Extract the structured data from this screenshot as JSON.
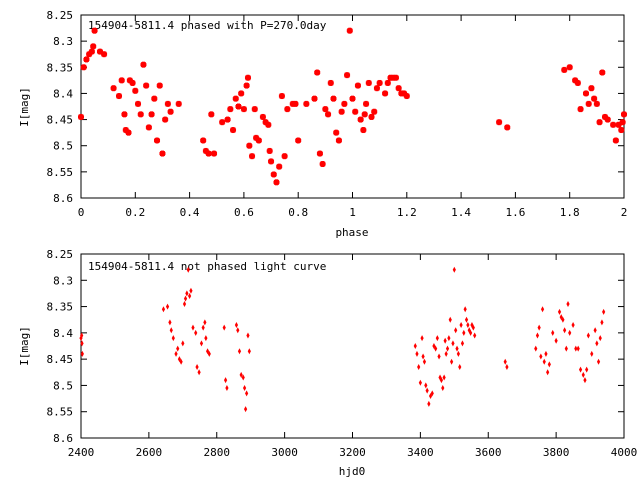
{
  "colors": {
    "points": "#ff0000",
    "axes": "#000000",
    "background": "#ffffff"
  },
  "chart_data": [
    {
      "type": "scatter",
      "title": "154904-5811.4 phased with P=270.0day",
      "xlabel": "phase",
      "ylabel": "I[mag]",
      "xlim": [
        0,
        2
      ],
      "ylim": [
        8.25,
        8.6
      ],
      "y_inverted": true,
      "grid": false,
      "marker": "thick-cross",
      "x_ticks": [
        "0",
        "0.2",
        "0.4",
        "0.6",
        "0.8",
        "1",
        "1.2",
        "1.4",
        "1.6",
        "1.8",
        "2"
      ],
      "y_ticks": [
        "8.25",
        "8.3",
        "8.35",
        "8.4",
        "8.45",
        "8.5",
        "8.55",
        "8.6"
      ],
      "points": [
        [
          0.0,
          8.445
        ],
        [
          0.01,
          8.35
        ],
        [
          0.02,
          8.335
        ],
        [
          0.03,
          8.325
        ],
        [
          0.04,
          8.32
        ],
        [
          0.045,
          8.31
        ],
        [
          0.05,
          8.28
        ],
        [
          0.07,
          8.32
        ],
        [
          0.085,
          8.325
        ],
        [
          0.12,
          8.39
        ],
        [
          0.14,
          8.405
        ],
        [
          0.15,
          8.375
        ],
        [
          0.16,
          8.44
        ],
        [
          0.165,
          8.47
        ],
        [
          0.175,
          8.475
        ],
        [
          0.18,
          8.375
        ],
        [
          0.19,
          8.38
        ],
        [
          0.2,
          8.395
        ],
        [
          0.21,
          8.42
        ],
        [
          0.22,
          8.44
        ],
        [
          0.23,
          8.345
        ],
        [
          0.24,
          8.385
        ],
        [
          0.25,
          8.465
        ],
        [
          0.26,
          8.44
        ],
        [
          0.27,
          8.41
        ],
        [
          0.28,
          8.49
        ],
        [
          0.29,
          8.385
        ],
        [
          0.3,
          8.515
        ],
        [
          0.31,
          8.45
        ],
        [
          0.32,
          8.42
        ],
        [
          0.33,
          8.435
        ],
        [
          0.36,
          8.42
        ],
        [
          0.45,
          8.49
        ],
        [
          0.46,
          8.51
        ],
        [
          0.47,
          8.515
        ],
        [
          0.48,
          8.44
        ],
        [
          0.49,
          8.515
        ],
        [
          0.52,
          8.455
        ],
        [
          0.54,
          8.45
        ],
        [
          0.55,
          8.43
        ],
        [
          0.56,
          8.47
        ],
        [
          0.57,
          8.41
        ],
        [
          0.58,
          8.425
        ],
        [
          0.59,
          8.4
        ],
        [
          0.6,
          8.43
        ],
        [
          0.61,
          8.385
        ],
        [
          0.615,
          8.37
        ],
        [
          0.62,
          8.5
        ],
        [
          0.63,
          8.52
        ],
        [
          0.64,
          8.43
        ],
        [
          0.645,
          8.485
        ],
        [
          0.655,
          8.49
        ],
        [
          0.67,
          8.445
        ],
        [
          0.68,
          8.455
        ],
        [
          0.69,
          8.46
        ],
        [
          0.695,
          8.51
        ],
        [
          0.7,
          8.53
        ],
        [
          0.71,
          8.555
        ],
        [
          0.72,
          8.57
        ],
        [
          0.73,
          8.54
        ],
        [
          0.74,
          8.405
        ],
        [
          0.75,
          8.52
        ],
        [
          0.76,
          8.43
        ],
        [
          0.78,
          8.42
        ],
        [
          0.79,
          8.42
        ],
        [
          0.8,
          8.49
        ],
        [
          0.83,
          8.42
        ],
        [
          0.86,
          8.41
        ],
        [
          0.87,
          8.36
        ],
        [
          0.88,
          8.515
        ],
        [
          0.89,
          8.535
        ],
        [
          0.9,
          8.43
        ],
        [
          0.91,
          8.44
        ],
        [
          0.92,
          8.38
        ],
        [
          0.93,
          8.41
        ],
        [
          0.94,
          8.475
        ],
        [
          0.95,
          8.49
        ],
        [
          0.96,
          8.435
        ],
        [
          0.97,
          8.42
        ],
        [
          0.98,
          8.365
        ],
        [
          0.99,
          8.28
        ],
        [
          1.0,
          8.41
        ],
        [
          1.01,
          8.435
        ],
        [
          1.02,
          8.385
        ],
        [
          1.03,
          8.45
        ],
        [
          1.04,
          8.47
        ],
        [
          1.045,
          8.44
        ],
        [
          1.05,
          8.42
        ],
        [
          1.06,
          8.38
        ],
        [
          1.07,
          8.445
        ],
        [
          1.08,
          8.435
        ],
        [
          1.09,
          8.39
        ],
        [
          1.1,
          8.38
        ],
        [
          1.12,
          8.4
        ],
        [
          1.13,
          8.38
        ],
        [
          1.14,
          8.37
        ],
        [
          1.15,
          8.37
        ],
        [
          1.16,
          8.37
        ],
        [
          1.17,
          8.39
        ],
        [
          1.18,
          8.4
        ],
        [
          1.19,
          8.4
        ],
        [
          1.2,
          8.405
        ],
        [
          1.54,
          8.455
        ],
        [
          1.57,
          8.465
        ],
        [
          1.78,
          8.355
        ],
        [
          1.8,
          8.35
        ],
        [
          1.82,
          8.375
        ],
        [
          1.83,
          8.38
        ],
        [
          1.84,
          8.43
        ],
        [
          1.86,
          8.4
        ],
        [
          1.87,
          8.42
        ],
        [
          1.88,
          8.39
        ],
        [
          1.89,
          8.41
        ],
        [
          1.9,
          8.42
        ],
        [
          1.91,
          8.455
        ],
        [
          1.92,
          8.36
        ],
        [
          1.93,
          8.445
        ],
        [
          1.94,
          8.45
        ],
        [
          1.96,
          8.46
        ],
        [
          1.97,
          8.49
        ],
        [
          1.98,
          8.46
        ],
        [
          1.99,
          8.47
        ],
        [
          1.995,
          8.455
        ],
        [
          2.0,
          8.44
        ]
      ]
    },
    {
      "type": "scatter",
      "title": "154904-5811.4 not phased light curve",
      "xlabel": "hjd0",
      "ylabel": "I[mag]",
      "xlim": [
        2400,
        4000
      ],
      "ylim": [
        8.25,
        8.6
      ],
      "y_inverted": true,
      "grid": false,
      "marker": "small-diamond",
      "x_ticks": [
        "2400",
        "2600",
        "2800",
        "3000",
        "3200",
        "3400",
        "3600",
        "3800",
        "4000"
      ],
      "y_ticks": [
        "8.25",
        "8.3",
        "8.35",
        "8.4",
        "8.45",
        "8.5",
        "8.55",
        "8.6"
      ],
      "points": [
        [
          2400,
          8.41
        ],
        [
          2402,
          8.405
        ],
        [
          2403,
          8.42
        ],
        [
          2404,
          8.44
        ],
        [
          2643,
          8.355
        ],
        [
          2655,
          8.35
        ],
        [
          2662,
          8.38
        ],
        [
          2666,
          8.395
        ],
        [
          2672,
          8.41
        ],
        [
          2680,
          8.44
        ],
        [
          2685,
          8.43
        ],
        [
          2690,
          8.45
        ],
        [
          2695,
          8.455
        ],
        [
          2700,
          8.42
        ],
        [
          2705,
          8.345
        ],
        [
          2708,
          8.335
        ],
        [
          2712,
          8.325
        ],
        [
          2716,
          8.28
        ],
        [
          2720,
          8.33
        ],
        [
          2724,
          8.32
        ],
        [
          2730,
          8.39
        ],
        [
          2738,
          8.4
        ],
        [
          2742,
          8.465
        ],
        [
          2748,
          8.475
        ],
        [
          2755,
          8.42
        ],
        [
          2760,
          8.39
        ],
        [
          2765,
          8.38
        ],
        [
          2768,
          8.41
        ],
        [
          2773,
          8.435
        ],
        [
          2778,
          8.44
        ],
        [
          2822,
          8.39
        ],
        [
          2826,
          8.49
        ],
        [
          2830,
          8.505
        ],
        [
          2858,
          8.385
        ],
        [
          2862,
          8.395
        ],
        [
          2867,
          8.435
        ],
        [
          2872,
          8.48
        ],
        [
          2878,
          8.485
        ],
        [
          2882,
          8.505
        ],
        [
          2885,
          8.545
        ],
        [
          2888,
          8.515
        ],
        [
          2892,
          8.405
        ],
        [
          2896,
          8.435
        ],
        [
          3385,
          8.425
        ],
        [
          3390,
          8.44
        ],
        [
          3395,
          8.465
        ],
        [
          3400,
          8.495
        ],
        [
          3405,
          8.41
        ],
        [
          3408,
          8.445
        ],
        [
          3412,
          8.455
        ],
        [
          3416,
          8.5
        ],
        [
          3420,
          8.51
        ],
        [
          3425,
          8.535
        ],
        [
          3430,
          8.52
        ],
        [
          3435,
          8.515
        ],
        [
          3440,
          8.425
        ],
        [
          3445,
          8.43
        ],
        [
          3450,
          8.41
        ],
        [
          3455,
          8.445
        ],
        [
          3458,
          8.485
        ],
        [
          3462,
          8.49
        ],
        [
          3466,
          8.505
        ],
        [
          3470,
          8.485
        ],
        [
          3473,
          8.415
        ],
        [
          3476,
          8.44
        ],
        [
          3480,
          8.43
        ],
        [
          3484,
          8.41
        ],
        [
          3488,
          8.375
        ],
        [
          3492,
          8.455
        ],
        [
          3496,
          8.42
        ],
        [
          3500,
          8.28
        ],
        [
          3504,
          8.395
        ],
        [
          3508,
          8.43
        ],
        [
          3512,
          8.44
        ],
        [
          3516,
          8.465
        ],
        [
          3520,
          8.385
        ],
        [
          3524,
          8.42
        ],
        [
          3528,
          8.4
        ],
        [
          3532,
          8.355
        ],
        [
          3536,
          8.375
        ],
        [
          3540,
          8.385
        ],
        [
          3544,
          8.395
        ],
        [
          3548,
          8.4
        ],
        [
          3552,
          8.385
        ],
        [
          3556,
          8.39
        ],
        [
          3560,
          8.405
        ],
        [
          3650,
          8.455
        ],
        [
          3655,
          8.465
        ],
        [
          3740,
          8.43
        ],
        [
          3745,
          8.405
        ],
        [
          3750,
          8.39
        ],
        [
          3755,
          8.445
        ],
        [
          3760,
          8.355
        ],
        [
          3765,
          8.455
        ],
        [
          3770,
          8.44
        ],
        [
          3775,
          8.475
        ],
        [
          3780,
          8.46
        ],
        [
          3790,
          8.4
        ],
        [
          3800,
          8.415
        ],
        [
          3810,
          8.36
        ],
        [
          3815,
          8.37
        ],
        [
          3820,
          8.375
        ],
        [
          3825,
          8.395
        ],
        [
          3830,
          8.43
        ],
        [
          3835,
          8.345
        ],
        [
          3840,
          8.4
        ],
        [
          3850,
          8.385
        ],
        [
          3858,
          8.43
        ],
        [
          3865,
          8.43
        ],
        [
          3872,
          8.47
        ],
        [
          3880,
          8.48
        ],
        [
          3885,
          8.49
        ],
        [
          3890,
          8.47
        ],
        [
          3895,
          8.405
        ],
        [
          3905,
          8.44
        ],
        [
          3915,
          8.395
        ],
        [
          3920,
          8.42
        ],
        [
          3925,
          8.455
        ],
        [
          3930,
          8.41
        ],
        [
          3935,
          8.38
        ],
        [
          3940,
          8.36
        ]
      ]
    }
  ]
}
